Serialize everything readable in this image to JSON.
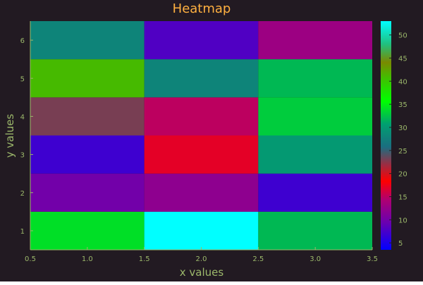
{
  "colors": {
    "background": "#221a22",
    "text": "#9cb86b",
    "title": "#ffb040",
    "axis": "#9cb86b"
  },
  "chart_data": {
    "type": "heatmap",
    "title": "Heatmap",
    "xlabel": "x values",
    "ylabel": "y values",
    "x": [
      1.0,
      2.0,
      3.0
    ],
    "y": [
      1,
      2,
      3,
      4,
      5,
      6
    ],
    "xlim": [
      0.5,
      3.5
    ],
    "ylim": [
      0.5,
      6.5
    ],
    "xticks": [
      "0.5",
      "1.0",
      "1.5",
      "2.0",
      "2.5",
      "3.0",
      "3.5"
    ],
    "xtick_values": [
      0.5,
      1.0,
      1.5,
      2.0,
      2.5,
      3.0,
      3.5
    ],
    "yticks": [
      "1",
      "2",
      "3",
      "4",
      "5",
      "6"
    ],
    "ytick_values": [
      1,
      2,
      3,
      4,
      5,
      6
    ],
    "z": [
      [
        34,
        53,
        32
      ],
      [
        10,
        12,
        7
      ],
      [
        7,
        17,
        30
      ],
      [
        23,
        15,
        33
      ],
      [
        41,
        28,
        32
      ],
      [
        28,
        8,
        13
      ]
    ],
    "zlim": [
      3.5,
      53
    ],
    "colorbar_ticks": [
      "5",
      "10",
      "15",
      "20",
      "25",
      "30",
      "35",
      "40",
      "45",
      "50"
    ],
    "colorbar_tick_values": [
      5,
      10,
      15,
      20,
      25,
      30,
      35,
      40,
      45,
      50
    ],
    "grid": false,
    "colormap": [
      [
        0.0,
        "#0000ff"
      ],
      [
        0.12,
        "#6a00b0"
      ],
      [
        0.22,
        "#b00070"
      ],
      [
        0.3,
        "#ff0000"
      ],
      [
        0.37,
        "#a02a40"
      ],
      [
        0.45,
        "#1a6e80"
      ],
      [
        0.55,
        "#00a070"
      ],
      [
        0.65,
        "#00ff00"
      ],
      [
        0.75,
        "#40c000"
      ],
      [
        0.82,
        "#7a8a00"
      ],
      [
        0.9,
        "#20c080"
      ],
      [
        1.0,
        "#00ffff"
      ]
    ]
  }
}
